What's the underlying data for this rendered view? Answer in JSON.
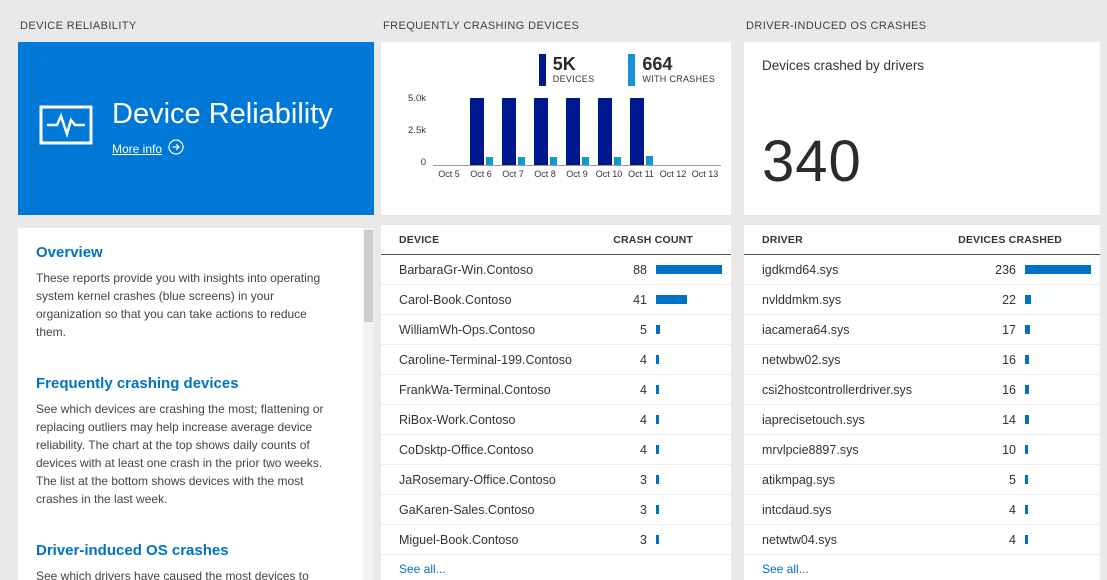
{
  "window": {
    "bg": "#e9e9e9",
    "accent": "#0078d7",
    "link_blue": "#0072c6"
  },
  "cols": {
    "reliability": {
      "header": "DEVICE RELIABILITY",
      "tile": {
        "title": "Device Reliability",
        "more_info": "More info",
        "color": "#0078d7"
      },
      "sections": [
        {
          "heading": "Overview",
          "body": "These reports provide you with insights into operating system kernel crashes (blue screens) in your organization so that you can take actions to reduce them."
        },
        {
          "heading": "Frequently crashing devices",
          "body": "See which devices are crashing the most; flattening or replacing outliers may help increase average device reliability. The chart at the top shows daily counts of devices with at least one crash in the prior two weeks. The list at the bottom shows devices with the most crashes in the last week."
        },
        {
          "heading": "Driver-induced OS crashes",
          "body": "See which drivers have caused the most devices to crash in"
        }
      ]
    },
    "devices": {
      "header": "FREQUENTLY CRASHING DEVICES",
      "table": {
        "columns": [
          "DEVICE",
          "CRASH COUNT"
        ],
        "rows": [
          {
            "name": "BarbaraGr-Win.Contoso",
            "value": 88
          },
          {
            "name": "Carol-Book.Contoso",
            "value": 41
          },
          {
            "name": "WilliamWh-Ops.Contoso",
            "value": 5
          },
          {
            "name": "Caroline-Terminal-199.Contoso",
            "value": 4
          },
          {
            "name": "FrankWa-Terminal.Contoso",
            "value": 4
          },
          {
            "name": "RiBox-Work.Contoso",
            "value": 4
          },
          {
            "name": "CoDsktp-Office.Contoso",
            "value": 4
          },
          {
            "name": "JaRosemary-Office.Contoso",
            "value": 3
          },
          {
            "name": "GaKaren-Sales.Contoso",
            "value": 3
          },
          {
            "name": "Miguel-Book.Contoso",
            "value": 3
          }
        ],
        "see_all": "See all..."
      }
    },
    "drivers": {
      "header": "DRIVER-INDUCED OS CRASHES",
      "summary_label": "Devices crashed by drivers",
      "summary_value": "340",
      "table": {
        "columns": [
          "DRIVER",
          "DEVICES CRASHED"
        ],
        "rows": [
          {
            "name": "igdkmd64.sys",
            "value": 236
          },
          {
            "name": "nvlddmkm.sys",
            "value": 22
          },
          {
            "name": "iacamera64.sys",
            "value": 17
          },
          {
            "name": "netwbw02.sys",
            "value": 16
          },
          {
            "name": "csi2hostcontrollerdriver.sys",
            "value": 16
          },
          {
            "name": "iaprecisetouch.sys",
            "value": 14
          },
          {
            "name": "mrvlpcie8897.sys",
            "value": 10
          },
          {
            "name": "atikmpag.sys",
            "value": 5
          },
          {
            "name": "intcdaud.sys",
            "value": 4
          },
          {
            "name": "netwtw04.sys",
            "value": 4
          }
        ],
        "see_all": "See all..."
      }
    }
  },
  "chart_data": {
    "type": "bar",
    "categories": [
      "Oct 5",
      "Oct 6",
      "Oct 7",
      "Oct 8",
      "Oct 9",
      "Oct 10",
      "Oct 11",
      "Oct 12",
      "Oct 13"
    ],
    "series": [
      {
        "name": "DEVICES",
        "color": "#00188f",
        "values": [
          0,
          4950,
          4900,
          4950,
          4900,
          4950,
          4950,
          0,
          0
        ]
      },
      {
        "name": "WITH CRASHES",
        "color": "#1593d6",
        "values": [
          0,
          600,
          580,
          600,
          590,
          620,
          664,
          0,
          0
        ]
      }
    ],
    "ylim": [
      0,
      5000
    ],
    "yticks": [
      "5.0k",
      "2.5k",
      "0"
    ],
    "legend": [
      {
        "value": "5K",
        "label": "DEVICES"
      },
      {
        "value": "664",
        "label": "WITH CRASHES"
      }
    ],
    "legend_position": "top-right",
    "grid": false
  }
}
